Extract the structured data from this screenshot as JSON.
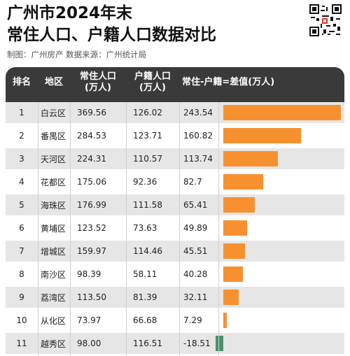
{
  "header": {
    "title_line1": "广州市2024年末",
    "title_line2": "常住人口、户籍人口数据对比",
    "subtitle": "制图：广州房产    数据来源：广州统计局"
  },
  "colors": {
    "positive": "#F7912F",
    "negative": "#4A8F6E",
    "header_bg": "#3a3a3a"
  },
  "table": {
    "headers": {
      "rank": "排名",
      "district": "地区",
      "resident_l1": "常住人口",
      "resident_l2": "(万人)",
      "registered_l1": "户籍人口",
      "registered_l2": "(万人)",
      "diff": "常住-户籍=差值(万人)"
    }
  },
  "chart_data": {
    "type": "table",
    "columns": [
      "排名",
      "地区",
      "常住人口(万人)",
      "户籍人口(万人)",
      "常住-户籍=差值(万人)"
    ],
    "rows": [
      {
        "rank": "1",
        "district": "白云区",
        "resident": "369.56",
        "registered": "126.02",
        "diff": "243.54",
        "diff_value": 243.54
      },
      {
        "rank": "2",
        "district": "番禺区",
        "resident": "284.53",
        "registered": "123.71",
        "diff": "160.82",
        "diff_value": 160.82
      },
      {
        "rank": "3",
        "district": "天河区",
        "resident": "224.31",
        "registered": "110.57",
        "diff": "113.74",
        "diff_value": 113.74
      },
      {
        "rank": "4",
        "district": "花都区",
        "resident": "175.06",
        "registered": "92.36",
        "diff": "82.7",
        "diff_value": 82.7
      },
      {
        "rank": "5",
        "district": "海珠区",
        "resident": "176.99",
        "registered": "111.58",
        "diff": "65.41",
        "diff_value": 65.41
      },
      {
        "rank": "6",
        "district": "黄埔区",
        "resident": "123.52",
        "registered": "73.63",
        "diff": "49.89",
        "diff_value": 49.89
      },
      {
        "rank": "7",
        "district": "增城区",
        "resident": "159.97",
        "registered": "114.46",
        "diff": "45.51",
        "diff_value": 45.51
      },
      {
        "rank": "8",
        "district": "南沙区",
        "resident": "98.39",
        "registered": "58.11",
        "diff": "40.28",
        "diff_value": 40.28
      },
      {
        "rank": "9",
        "district": "荔湾区",
        "resident": "113.50",
        "registered": "81.39",
        "diff": "32.11",
        "diff_value": 32.11
      },
      {
        "rank": "10",
        "district": "从化区",
        "resident": "73.97",
        "registered": "66.68",
        "diff": "7.29",
        "diff_value": 7.29
      },
      {
        "rank": "11",
        "district": "越秀区",
        "resident": "98.00",
        "registered": "116.51",
        "diff": "-18.51",
        "diff_value": -18.51
      }
    ]
  }
}
